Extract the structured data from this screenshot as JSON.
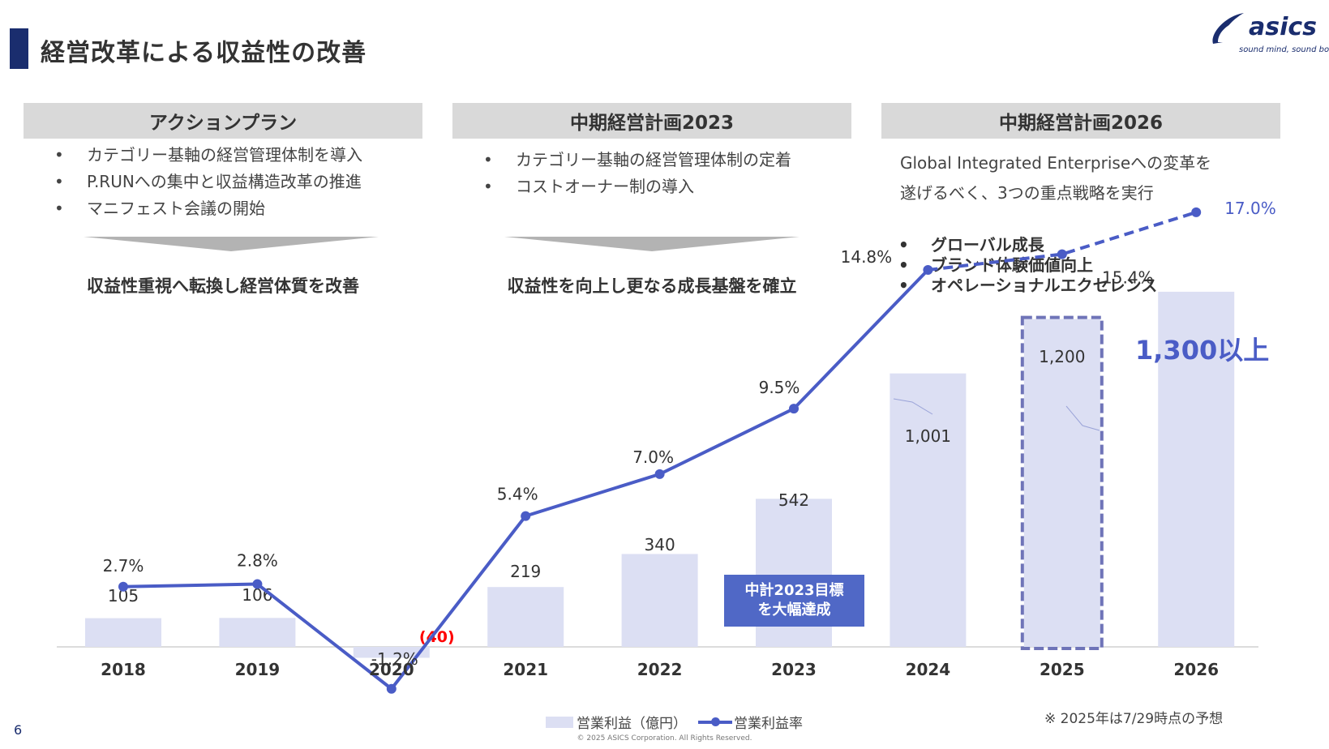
{
  "header": {
    "title": "経営改革による収益性の改善",
    "logo_text": "asics",
    "logo_tagline": "sound mind, sound body"
  },
  "columns": [
    {
      "header": "アクションプラン",
      "bullets": [
        "カテゴリー基軸の経営管理体制を導入",
        "P.RUNへの集中と収益構造改革の推進",
        "マニフェスト会議の開始"
      ],
      "conclusion": "収益性重視へ転換し経営体質を改善"
    },
    {
      "header": "中期経営計画2023",
      "bullets": [
        "カテゴリー基軸の経営管理体制の定着",
        "コストオーナー制の導入"
      ],
      "conclusion": "収益性を向上し更なる成長基盤を確立"
    },
    {
      "header": "中期経営計画2026",
      "description_lines": [
        "Global Integrated Enterpriseへの変革を",
        "遂げるべく、3つの重点戦略を実行"
      ],
      "strategies": [
        "グローバル成長",
        "ブランド体験価値向上",
        "オペレーショナルエクセレンス"
      ]
    }
  ],
  "chart_data": {
    "type": "bar+line",
    "categories": [
      "2018",
      "2019",
      "2020",
      "2021",
      "2022",
      "2023",
      "2024",
      "2025",
      "2026"
    ],
    "series": [
      {
        "name": "営業利益（億円）",
        "type": "bar",
        "values": [
          105,
          106,
          -40,
          219,
          340,
          542,
          1001,
          1200,
          1300
        ],
        "labels": [
          "105",
          "106",
          "(40)",
          "219",
          "340",
          "542",
          "1,001",
          "1,200",
          ""
        ]
      },
      {
        "name": "営業利益率",
        "type": "line",
        "values": [
          2.7,
          2.8,
          -1.2,
          5.4,
          7.0,
          9.5,
          14.8,
          15.4,
          17.0
        ],
        "labels": [
          "2.7%",
          "2.8%",
          "-1.2%",
          "5.4%",
          "7.0%",
          "9.5%",
          "14.8%",
          "15.4%",
          "17.0%"
        ],
        "forecast_from": "2024"
      }
    ],
    "forecast_categories": [
      "2025"
    ],
    "callout": [
      "中計2023目標",
      "を大幅達成"
    ],
    "target_label": "1,300以上"
  },
  "legend": {
    "bar": "営業利益（億円）",
    "line": "営業利益率"
  },
  "note": "※ 2025年は7/29時点の予想",
  "page_number": "6",
  "copyright": "© 2025 ASICS Corporation. All Rights Reserved.",
  "colors": {
    "navy": "#1a2d6e",
    "line": "#4a5cc6",
    "bar": "#dcdff3",
    "negative": "#ff0000",
    "callout": "#5068c6",
    "header_bg": "#d9d9d9"
  }
}
